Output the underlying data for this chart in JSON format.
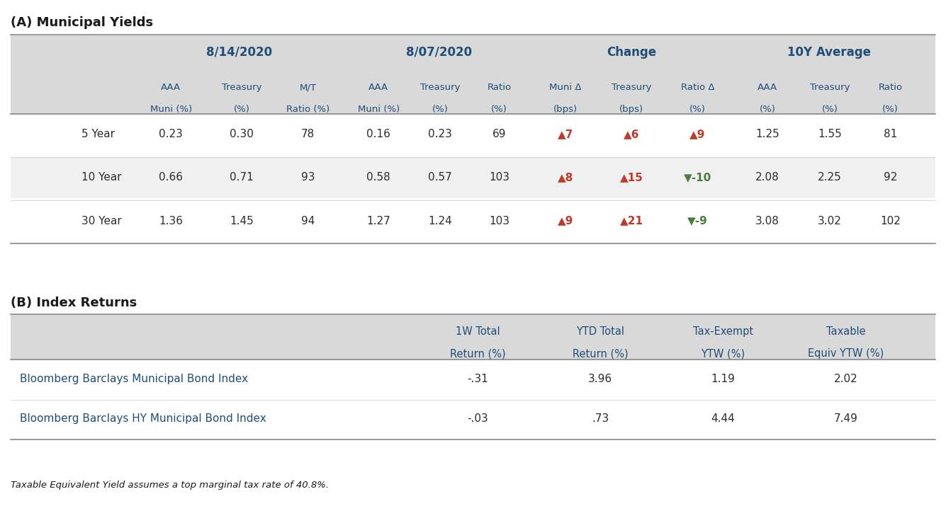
{
  "title_a": "(A) Municipal Yields",
  "title_b": "(B) Index Returns",
  "footnote": "Taxable Equivalent Yield assumes a top marginal tax rate of 40.8%.",
  "section_a": {
    "rows": [
      {
        "label": "5 Year",
        "values": [
          "0.23",
          "0.30",
          "78",
          "0.16",
          "0.23",
          "69",
          null,
          null,
          null,
          "1.25",
          "1.55",
          "81"
        ],
        "change": [
          {
            "symbol": "▲",
            "value": "7",
            "color": "#c0392b"
          },
          {
            "symbol": "▲",
            "value": "6",
            "color": "#c0392b"
          },
          {
            "symbol": "▲",
            "value": "9",
            "color": "#c0392b"
          }
        ]
      },
      {
        "label": "10 Year",
        "values": [
          "0.66",
          "0.71",
          "93",
          "0.58",
          "0.57",
          "103",
          null,
          null,
          null,
          "2.08",
          "2.25",
          "92"
        ],
        "change": [
          {
            "symbol": "▲",
            "value": "8",
            "color": "#c0392b"
          },
          {
            "symbol": "▲",
            "value": "15",
            "color": "#c0392b"
          },
          {
            "symbol": "▼",
            "value": "-10",
            "color": "#4a7c3f"
          }
        ]
      },
      {
        "label": "30 Year",
        "values": [
          "1.36",
          "1.45",
          "94",
          "1.27",
          "1.24",
          "103",
          null,
          null,
          null,
          "3.08",
          "3.02",
          "102"
        ],
        "change": [
          {
            "symbol": "▲",
            "value": "9",
            "color": "#c0392b"
          },
          {
            "symbol": "▲",
            "value": "21",
            "color": "#c0392b"
          },
          {
            "symbol": "▼",
            "value": "-9",
            "color": "#4a7c3f"
          }
        ]
      }
    ]
  },
  "section_b": {
    "rows": [
      {
        "label": "Bloomberg Barclays Municipal Bond Index",
        "values": [
          "-.31",
          "3.96",
          "1.19",
          "2.02"
        ]
      },
      {
        "label": "Bloomberg Barclays HY Municipal Bond Index",
        "values": [
          "-.03",
          ".73",
          "4.44",
          "7.49"
        ]
      }
    ]
  },
  "colors": {
    "header_blue": "#1f4e79",
    "row_label_dark": "#2c2c2c",
    "index_label_blue": "#1f4e79",
    "bg_header": "#d9d9d9",
    "bg_white": "#ffffff",
    "bg_light": "#f0f0f0",
    "text_dark": "#2c2c2c",
    "divider_heavy": "#888888",
    "divider_light": "#cccccc"
  }
}
